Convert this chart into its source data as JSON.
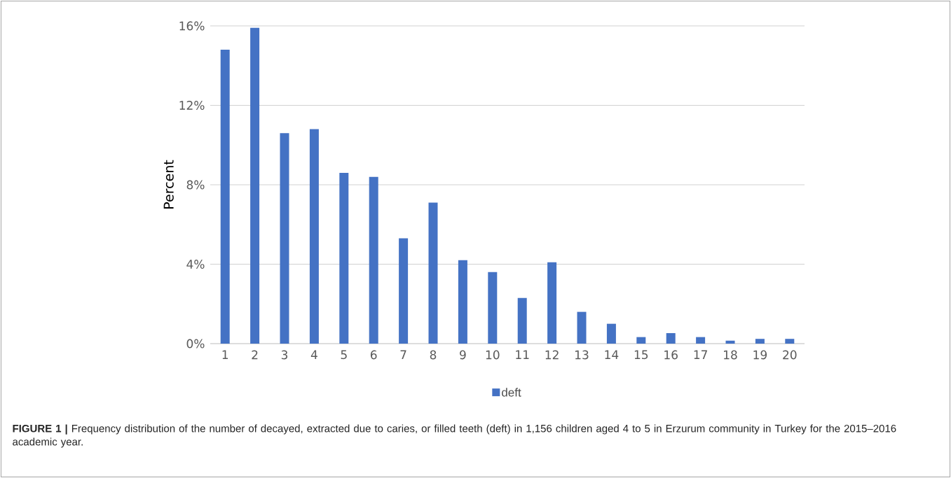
{
  "chart_data": {
    "type": "bar",
    "ylabel": "Percent",
    "categories": [
      "1",
      "2",
      "3",
      "4",
      "5",
      "6",
      "7",
      "8",
      "9",
      "10",
      "11",
      "12",
      "13",
      "14",
      "15",
      "16",
      "17",
      "18",
      "19",
      "20"
    ],
    "series": [
      {
        "name": "deft",
        "color": "#4472c4",
        "values": [
          14.8,
          15.9,
          10.6,
          10.8,
          8.6,
          8.4,
          5.3,
          7.1,
          4.2,
          3.6,
          2.3,
          4.1,
          1.6,
          1.0,
          0.33,
          0.53,
          0.33,
          0.15,
          0.24,
          0.24
        ]
      }
    ],
    "ylim": [
      0,
      16
    ],
    "yticks": [
      {
        "value": 0,
        "label": "0%"
      },
      {
        "value": 4,
        "label": "4%"
      },
      {
        "value": 8,
        "label": "8%"
      },
      {
        "value": 12,
        "label": "12%"
      },
      {
        "value": 16,
        "label": "16%"
      }
    ],
    "grid": "y",
    "legend": "bottom",
    "annotations": [
      "**FIGURE 1 |** Frequency distribution of the number of decayed, extracted due to caries, or filled teeth (deft) in 1,156 children aged 4 to 5 in Erzurum community in Turkey for the 2015–2016 academic year."
    ]
  }
}
